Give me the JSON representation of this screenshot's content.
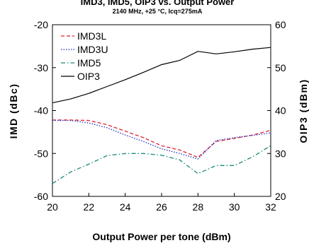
{
  "chart_data": {
    "type": "line",
    "title": "IMD3, IMD5, OIP3 vs. Output Power",
    "subtitle": "2140 MHz, +25 °C, Icq=275mA",
    "xlabel": "Output Power per tone (dBm)",
    "ylabel_left": "IMD (dBc)",
    "ylabel_right": "OIP3 (dBm)",
    "xlim": [
      20,
      32
    ],
    "ylim_left": [
      -60,
      -20
    ],
    "ylim_right": [
      20,
      60
    ],
    "x_ticks": [
      "20",
      "22",
      "24",
      "26",
      "28",
      "30",
      "32"
    ],
    "y_ticks_left": [
      "-20",
      "-30",
      "-40",
      "-50",
      "-60"
    ],
    "y_ticks_right": [
      "60",
      "50",
      "40",
      "30",
      "20"
    ],
    "grid": false,
    "legend_position": "top-left",
    "series": [
      {
        "name": "IMD3L",
        "axis": "left",
        "color": "#e0202e",
        "style": "dashed",
        "x": [
          20,
          21,
          22,
          23,
          24,
          25,
          26,
          27,
          28,
          29,
          30,
          31,
          32
        ],
        "y": [
          -42.2,
          -42.2,
          -42.3,
          -43.3,
          -44.8,
          -46.3,
          -48.2,
          -49.2,
          -50.9,
          -47.2,
          -46.5,
          -45.7,
          -44.6
        ]
      },
      {
        "name": "IMD3U",
        "axis": "left",
        "color": "#2030c0",
        "style": "dotted",
        "x": [
          20,
          21,
          22,
          23,
          24,
          25,
          26,
          27,
          28,
          29,
          30,
          31,
          32
        ],
        "y": [
          -42.3,
          -42.3,
          -42.9,
          -44.0,
          -45.7,
          -47.2,
          -48.9,
          -50.0,
          -51.3,
          -47.0,
          -46.3,
          -45.8,
          -45.2
        ]
      },
      {
        "name": "IMD5",
        "axis": "left",
        "color": "#1a8a7a",
        "style": "dashdot",
        "x": [
          20,
          21,
          22,
          23,
          24,
          25,
          26,
          27,
          28,
          29,
          30,
          31,
          32
        ],
        "y": [
          -57.0,
          -54.3,
          -52.5,
          -50.5,
          -50.0,
          -50.0,
          -50.4,
          -51.5,
          -54.7,
          -52.8,
          -52.8,
          -50.8,
          -48.2
        ]
      },
      {
        "name": "OIP3",
        "axis": "right",
        "color": "#000000",
        "style": "solid",
        "x": [
          20,
          21,
          22,
          23,
          24,
          25,
          26,
          27,
          28,
          29,
          30,
          31,
          32
        ],
        "y": [
          41.8,
          42.7,
          44.0,
          45.6,
          47.2,
          48.9,
          50.7,
          51.7,
          53.8,
          53.2,
          53.7,
          54.3,
          54.7
        ]
      }
    ]
  }
}
